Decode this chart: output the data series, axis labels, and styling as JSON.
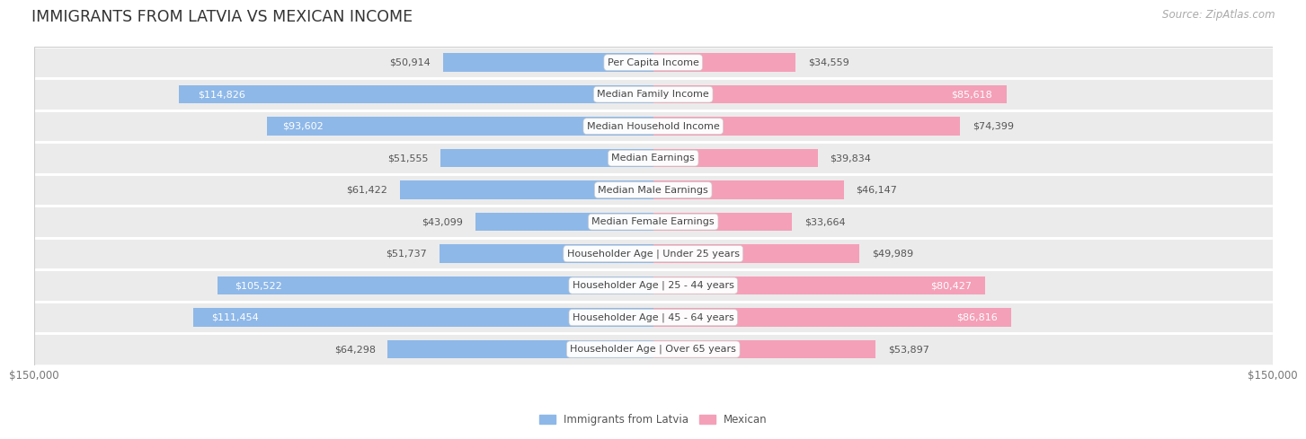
{
  "title": "IMMIGRANTS FROM LATVIA VS MEXICAN INCOME",
  "source": "Source: ZipAtlas.com",
  "categories": [
    "Per Capita Income",
    "Median Family Income",
    "Median Household Income",
    "Median Earnings",
    "Median Male Earnings",
    "Median Female Earnings",
    "Householder Age | Under 25 years",
    "Householder Age | 25 - 44 years",
    "Householder Age | 45 - 64 years",
    "Householder Age | Over 65 years"
  ],
  "latvia_values": [
    50914,
    114826,
    93602,
    51555,
    61422,
    43099,
    51737,
    105522,
    111454,
    64298
  ],
  "mexican_values": [
    34559,
    85618,
    74399,
    39834,
    46147,
    33664,
    49989,
    80427,
    86816,
    53897
  ],
  "max_val": 150000,
  "latvia_color": "#8eb8e8",
  "mexican_color": "#f4a0b8",
  "latvia_label": "Immigrants from Latvia",
  "mexican_label": "Mexican",
  "bar_height": 0.58,
  "label_font_size": 8.0,
  "value_font_size": 8.0,
  "title_font_size": 12.5,
  "source_font_size": 8.5,
  "inside_label_threshold": 75000
}
